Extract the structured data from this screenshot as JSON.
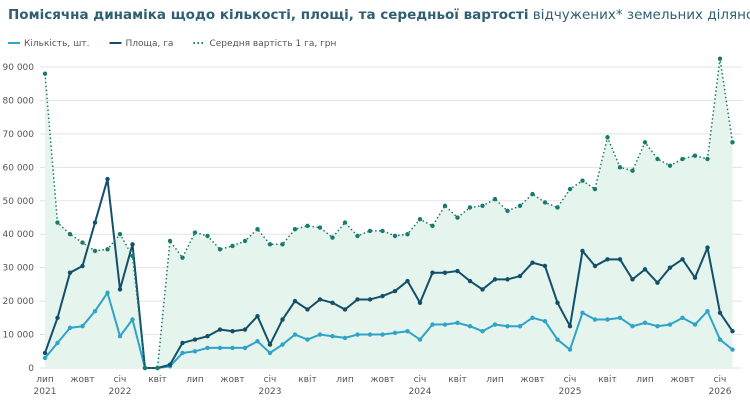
{
  "chart_data": {
    "type": "line",
    "title": "Помісячна динаміка щодо кількості, площі, та середньої вартості",
    "title_continuation": "відчужених* земельних ділянок.",
    "categories": [
      "лип 2021",
      null,
      null,
      "жовт",
      null,
      null,
      "січ 2022",
      null,
      null,
      "квіт",
      null,
      null,
      "лип",
      null,
      null,
      "жовт",
      null,
      null,
      "січ 2023",
      null,
      null,
      "квіт",
      null,
      null,
      "лип",
      null,
      null,
      "жовт",
      null,
      null,
      "січ 2024",
      null,
      null,
      "квіт",
      null,
      null,
      "лип",
      null,
      null,
      "жовт",
      null,
      null,
      "січ 2025",
      null,
      null,
      "квіт",
      null,
      null,
      "лип",
      null,
      null,
      "жовт",
      null,
      null,
      "січ 2026",
      null
    ],
    "series": [
      {
        "name": "Кількість, шт.",
        "color": "#2fa3c8",
        "line_style": "solid",
        "values": [
          3000,
          7500,
          12000,
          12500,
          17000,
          22500,
          9500,
          14500,
          0,
          0,
          500,
          4500,
          5000,
          6000,
          6000,
          6000,
          6000,
          8000,
          4500,
          7000,
          10000,
          8500,
          10000,
          9500,
          9000,
          10000,
          10000,
          10000,
          10500,
          11000,
          8500,
          13000,
          13000,
          13500,
          12500,
          11000,
          13000,
          12500,
          12500,
          15000,
          14000,
          8500,
          5500,
          16500,
          14500,
          14500,
          15000,
          12500,
          13500,
          12500,
          13000,
          15000,
          13000,
          17000,
          8500,
          5500
        ]
      },
      {
        "name": "Площа, га",
        "color": "#12506a",
        "line_style": "solid",
        "values": [
          4500,
          15000,
          28500,
          30500,
          43500,
          56500,
          23500,
          37000,
          0,
          0,
          1000,
          7500,
          8500,
          9500,
          11500,
          11000,
          11500,
          15500,
          7000,
          14500,
          20000,
          17500,
          20500,
          19500,
          17500,
          20500,
          20500,
          21500,
          23000,
          26000,
          19500,
          28500,
          28500,
          29000,
          26000,
          23500,
          26500,
          26500,
          27500,
          31500,
          30500,
          19500,
          12500,
          35000,
          30500,
          32500,
          32500,
          26500,
          29500,
          25500,
          30000,
          32500,
          27000,
          36000,
          16500,
          11000
        ]
      },
      {
        "name": "Середня вартість 1 га, грн",
        "color": "#1a7a6e",
        "line_style": "dotted",
        "area_fill": "#e5f4ec",
        "values": [
          88000,
          43500,
          40000,
          37500,
          35000,
          35500,
          40000,
          33500,
          0,
          0,
          38000,
          33000,
          40500,
          39500,
          35500,
          36500,
          38000,
          41500,
          37000,
          37000,
          41500,
          42500,
          42000,
          39000,
          43500,
          39500,
          41000,
          41000,
          39500,
          40000,
          44500,
          42500,
          48500,
          45000,
          48000,
          48500,
          50500,
          47000,
          48500,
          52000,
          49500,
          48000,
          53500,
          56000,
          53500,
          69000,
          60000,
          59000,
          67500,
          62500,
          60500,
          62500,
          63500,
          62500,
          92500,
          67500
        ]
      }
    ],
    "ylim": [
      0,
      93000
    ],
    "yticks": [
      {
        "value": 0,
        "label": "0"
      },
      {
        "value": 10000,
        "label": "10 000"
      },
      {
        "value": 20000,
        "label": "20 000"
      },
      {
        "value": 30000,
        "label": "30 000"
      },
      {
        "value": 40000,
        "label": "40 000"
      },
      {
        "value": 50000,
        "label": "50 000"
      },
      {
        "value": 60000,
        "label": "60 000"
      },
      {
        "value": 70000,
        "label": "70 000"
      },
      {
        "value": 80000,
        "label": "80 000"
      },
      {
        "value": 90000,
        "label": "90 000"
      }
    ],
    "grid": true,
    "legend": "top-left"
  }
}
